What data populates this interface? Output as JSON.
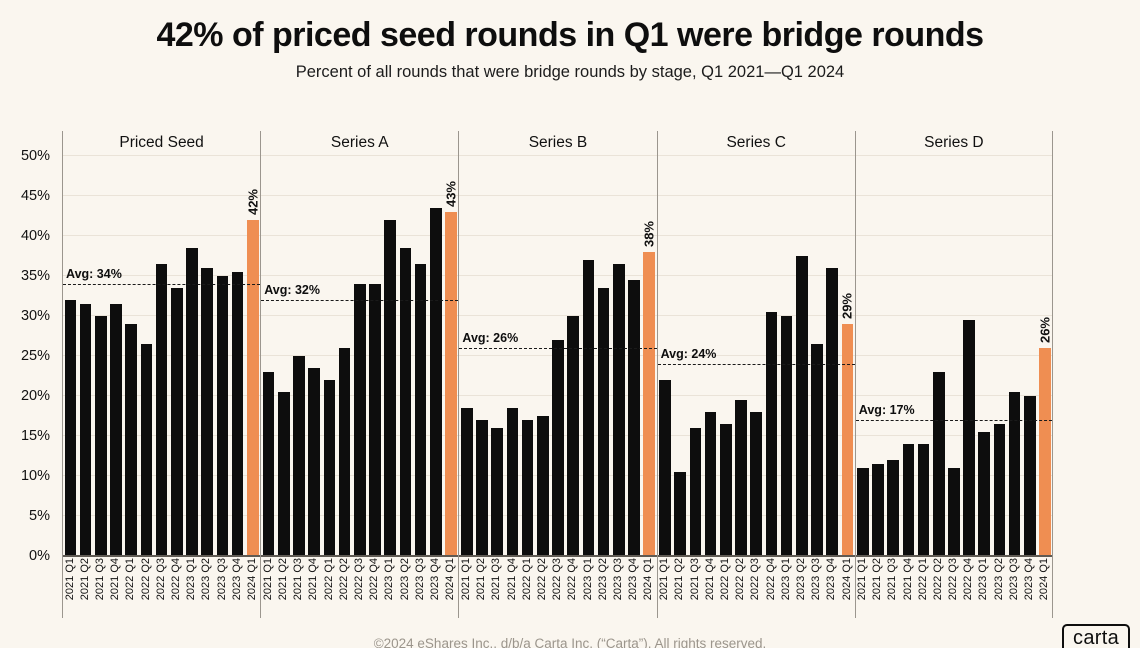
{
  "title": "42% of priced seed rounds in Q1 were bridge rounds",
  "subtitle": "Percent of all rounds that were bridge rounds by stage, Q1 2021—Q1 2024",
  "footer": {
    "copyright": "©2024 eShares Inc., d/b/a Carta Inc. (“Carta”). All rights reserved.",
    "logo_text": "carta"
  },
  "colors": {
    "background": "#faf6ef",
    "bar": "#0d0d0d",
    "highlight": "#ef8e52",
    "gridline": "#eae3d8",
    "divider": "#9b968e",
    "footer_text": "#9b958c"
  },
  "chart_data": {
    "type": "bar",
    "categories": [
      "2021 Q1",
      "2021 Q2",
      "2021 Q3",
      "2021 Q4",
      "2022 Q1",
      "2022 Q2",
      "2022 Q3",
      "2022 Q4",
      "2023 Q1",
      "2023 Q2",
      "2023 Q3",
      "2023 Q4",
      "2024 Q1"
    ],
    "y_ticks": [
      "0%",
      "5%",
      "10%",
      "15%",
      "20%",
      "25%",
      "30%",
      "35%",
      "40%",
      "45%",
      "50%"
    ],
    "ylim": [
      0,
      50
    ],
    "grid": true,
    "highlight_index": 12,
    "panels": [
      {
        "title": "Priced Seed",
        "avg": 34,
        "avg_label": "Avg: 34%",
        "highlight_label": "42%",
        "values": [
          32,
          31.5,
          30,
          31.5,
          29,
          26.5,
          36.5,
          33.5,
          38.5,
          36,
          35,
          35.5,
          42
        ]
      },
      {
        "title": "Series A",
        "avg": 32,
        "avg_label": "Avg: 32%",
        "highlight_label": "43%",
        "values": [
          23,
          20.5,
          25,
          23.5,
          22,
          26,
          34,
          34,
          42,
          38.5,
          36.5,
          43.5,
          43
        ]
      },
      {
        "title": "Series B",
        "avg": 26,
        "avg_label": "Avg: 26%",
        "highlight_label": "38%",
        "values": [
          18.5,
          17,
          16,
          18.5,
          17,
          17.5,
          27,
          30,
          37,
          33.5,
          36.5,
          34.5,
          38
        ]
      },
      {
        "title": "Series C",
        "avg": 24,
        "avg_label": "Avg: 24%",
        "highlight_label": "29%",
        "values": [
          22,
          10.5,
          16,
          18,
          16.5,
          19.5,
          18,
          30.5,
          30,
          37.5,
          26.5,
          36,
          29
        ]
      },
      {
        "title": "Series D",
        "avg": 17,
        "avg_label": "Avg: 17%",
        "highlight_label": "26%",
        "values": [
          11,
          11.5,
          12,
          14,
          14,
          23,
          11,
          29.5,
          15.5,
          16.5,
          20.5,
          20,
          26
        ]
      }
    ]
  }
}
